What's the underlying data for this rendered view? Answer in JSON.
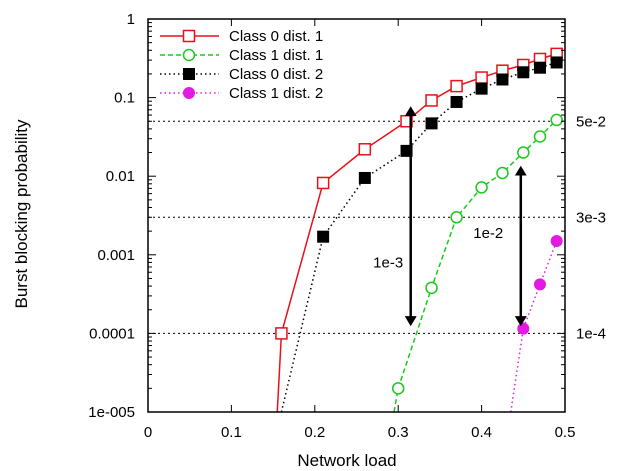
{
  "chart_data": {
    "type": "line",
    "title": "",
    "xlabel": "Network load",
    "ylabel": "Burst blocking probability",
    "xlim": [
      0,
      0.5
    ],
    "ylim": [
      1e-05,
      1
    ],
    "yscale": "log",
    "x_ticks": [
      0,
      0.1,
      0.2,
      0.3,
      0.4,
      0.5
    ],
    "x_tick_labels": [
      "0",
      "0.1",
      "0.2",
      "0.3",
      "0.4",
      "0.5"
    ],
    "y_ticks": [
      1e-05,
      0.0001,
      0.001,
      0.01,
      0.1,
      1
    ],
    "y_tick_labels": [
      "1e-005",
      "0.0001",
      "0.001",
      "0.01",
      "0.1",
      "1"
    ],
    "legend_position": "top-left",
    "series": [
      {
        "name": "Class 0 dist. 1",
        "color": "#e8101a",
        "line_style": "solid",
        "marker": "open-square",
        "x": [
          0.16,
          0.21,
          0.26,
          0.31,
          0.34,
          0.37,
          0.4,
          0.425,
          0.45,
          0.47,
          0.49
        ],
        "y": [
          0.0001,
          0.0082,
          0.022,
          0.05,
          0.092,
          0.14,
          0.18,
          0.22,
          0.26,
          0.31,
          0.36
        ],
        "leading_x": [
          0.155
        ],
        "leading_y": [
          1e-05
        ]
      },
      {
        "name": "Class 1 dist. 1",
        "color": "#1aca1a",
        "line_style": "dashed",
        "marker": "open-circle",
        "x": [
          0.3,
          0.34,
          0.37,
          0.4,
          0.425,
          0.45,
          0.47,
          0.49
        ],
        "y": [
          2e-05,
          0.00038,
          0.003,
          0.0072,
          0.011,
          0.02,
          0.032,
          0.052
        ],
        "leading_x": [
          0.295
        ],
        "leading_y": [
          1e-05
        ]
      },
      {
        "name": "Class 0 dist. 2",
        "color": "#000000",
        "line_style": "dotted",
        "marker": "filled-square",
        "x": [
          0.21,
          0.26,
          0.31,
          0.34,
          0.37,
          0.4,
          0.425,
          0.45,
          0.47,
          0.49
        ],
        "y": [
          0.0017,
          0.0095,
          0.021,
          0.047,
          0.088,
          0.13,
          0.17,
          0.21,
          0.24,
          0.28
        ],
        "leading_x": [
          0.16
        ],
        "leading_y": [
          1e-05
        ]
      },
      {
        "name": "Class 1 dist. 2",
        "color": "#e21ae2",
        "line_style": "dotted",
        "marker": "filled-circle",
        "x": [
          0.45,
          0.47,
          0.49
        ],
        "y": [
          0.000115,
          0.00042,
          0.0015
        ],
        "leading_x": [
          0.435
        ],
        "leading_y": [
          1e-05
        ]
      }
    ],
    "reference_lines": [
      {
        "y": 0.05,
        "label": "5e-2"
      },
      {
        "y": 0.003,
        "label": "3e-3"
      },
      {
        "y": 0.0001,
        "label": "1e-4"
      }
    ],
    "annotations": [
      {
        "label": "1e-3",
        "arrow_x": 0.315,
        "arrow_y_from": 0.08,
        "arrow_y_to": 0.00012,
        "label_x": 0.27,
        "label_y": 0.0008
      },
      {
        "label": "1e-2",
        "arrow_x": 0.447,
        "arrow_y_from": 0.014,
        "arrow_y_to": 0.00012,
        "label_x": 0.39,
        "label_y": 0.0019
      }
    ]
  }
}
